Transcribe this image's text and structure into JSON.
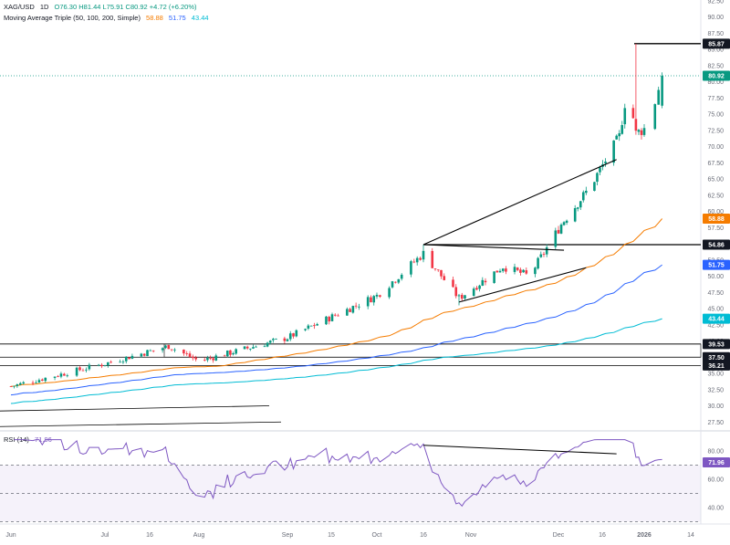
{
  "header": {
    "symbol": "XAG/USD",
    "interval": "1D",
    "ohlc": "O76.30 H81.44 L75.91 C80.92 +4.72 (+6.20%)",
    "ma_label": "Moving Average Triple (50, 100, 200, Simple)",
    "ma_values": [
      "58.88",
      "51.75",
      "43.44"
    ],
    "rsi_label": "RSI (14)",
    "rsi_value": "71.96"
  },
  "colors": {
    "up": "#089981",
    "down": "#f23645",
    "ma50": "#f57c00",
    "ma100": "#2962ff",
    "ma200": "#00bcd4",
    "rsi": "#7e57c2",
    "trendline": "#000000",
    "grid_dots": "#9aa0a6"
  },
  "chart_data": [
    {
      "type": "candlestick",
      "title": "",
      "price_axis_ticks": [
        "27.50",
        "30.00",
        "32.50",
        "35.00",
        "37.50",
        "40.00",
        "42.50",
        "45.00",
        "47.50",
        "50.00",
        "52.50",
        "55.00",
        "57.50",
        "60.00",
        "62.50",
        "65.00",
        "67.50",
        "70.00",
        "72.50",
        "75.00",
        "77.50",
        "80.00",
        "82.50",
        "85.00",
        "87.50",
        "90.00",
        "92.50"
      ],
      "ylim": [
        26.0,
        93.5
      ],
      "time_axis_labels": [
        "Jun",
        "Jul",
        "16",
        "Aug",
        "Sep",
        "15",
        "Oct",
        "16",
        "Nov",
        "Dec",
        "16",
        "2026",
        "14"
      ],
      "price_labels": [
        {
          "value": 85.87,
          "text": "85.87",
          "style": "black"
        },
        {
          "value": 80.92,
          "text": "80.92",
          "style": "green"
        },
        {
          "value": 58.88,
          "text": "58.88",
          "style": "orange"
        },
        {
          "value": 54.86,
          "text": "54.86",
          "style": "black"
        },
        {
          "value": 51.75,
          "text": "51.75",
          "style": "blue"
        },
        {
          "value": 43.44,
          "text": "43.44",
          "style": "teal"
        },
        {
          "value": 39.53,
          "text": "39.53",
          "style": "black"
        },
        {
          "value": 37.5,
          "text": "37.50",
          "style": "black"
        },
        {
          "value": 36.21,
          "text": "36.21",
          "style": "black"
        }
      ],
      "horizontal_levels": [
        85.87,
        54.86,
        39.53,
        37.5,
        36.21
      ],
      "last_price_line": 80.92,
      "moving_averages": [
        {
          "period": 50,
          "name": "MA 50",
          "last": 58.88
        },
        {
          "period": 100,
          "name": "MA 100",
          "last": 51.75
        },
        {
          "period": 200,
          "name": "MA 200",
          "last": 43.44
        }
      ],
      "trendlines": [
        {
          "from": [
            "Oct 16",
            54.86
          ],
          "to": [
            "Dec 22",
            68.0
          ]
        },
        {
          "from": [
            "Oct 16",
            54.86
          ],
          "to": [
            "Dec 3",
            54.0
          ]
        },
        {
          "from": [
            "Oct 28",
            46.0
          ],
          "to": [
            "Dec 11",
            51.3
          ]
        }
      ],
      "candles_key_points": [
        {
          "date": "Jun 1",
          "close": 33.0
        },
        {
          "date": "Jul 1",
          "close": 36.5
        },
        {
          "date": "Jul 22",
          "close": 39.2
        },
        {
          "date": "Aug 1",
          "close": 36.9
        },
        {
          "date": "Sep 1",
          "close": 40.5
        },
        {
          "date": "Oct 1",
          "close": 47.0
        },
        {
          "date": "Oct 16",
          "close": 53.5,
          "high": 54.86
        },
        {
          "date": "Oct 28",
          "close": 46.6,
          "low": 45.5
        },
        {
          "date": "Nov 12",
          "close": 51.5
        },
        {
          "date": "Nov 21",
          "close": 50.0
        },
        {
          "date": "Dec 2",
          "close": 58.0
        },
        {
          "date": "Dec 12",
          "close": 63.5
        },
        {
          "date": "Dec 23",
          "close": 71.5
        },
        {
          "date": "Dec 26",
          "close": 79.3
        },
        {
          "date": "Dec 29",
          "close": 72.0,
          "high": 85.87
        },
        {
          "date": "Jan 2",
          "close": 73.0
        },
        {
          "date": "Jan 6",
          "close": 80.92,
          "high": 81.44,
          "low": 75.91,
          "open": 76.3
        }
      ]
    },
    {
      "type": "line",
      "title": "",
      "series": [
        {
          "name": "RSI (14)",
          "last": 71.96
        }
      ],
      "rsi_axis_ticks": [
        "40.00",
        "60.00",
        "80.00"
      ],
      "ylim": [
        28,
        90
      ],
      "levels": [
        70,
        50,
        30
      ],
      "price_labels": [
        {
          "value": 71.96,
          "text": "71.96",
          "style": "purple"
        }
      ],
      "divergence_line": {
        "from": [
          "Oct 16",
          84.0
        ],
        "to": [
          "Dec 22",
          78.0
        ]
      }
    }
  ]
}
